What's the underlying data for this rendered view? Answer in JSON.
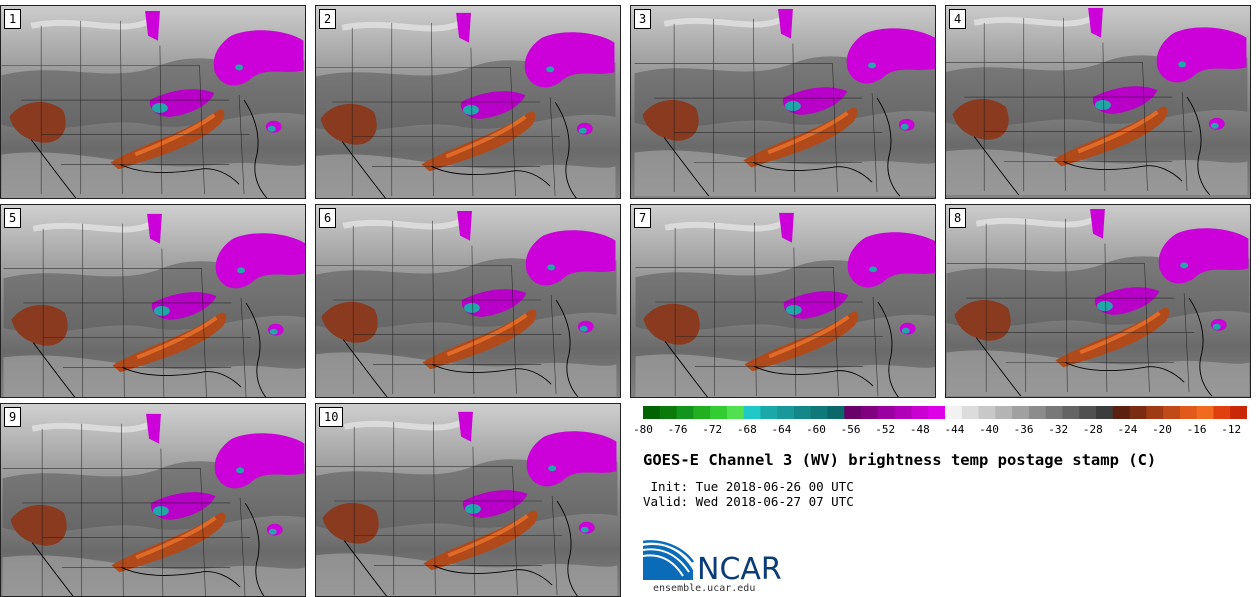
{
  "panels": [
    {
      "label": "1"
    },
    {
      "label": "2"
    },
    {
      "label": "3"
    },
    {
      "label": "4"
    },
    {
      "label": "5"
    },
    {
      "label": "6"
    },
    {
      "label": "7"
    },
    {
      "label": "8"
    },
    {
      "label": "9"
    },
    {
      "label": "10"
    }
  ],
  "colorbar": {
    "ticks": [
      "-80",
      "-76",
      "-72",
      "-68",
      "-64",
      "-60",
      "-56",
      "-52",
      "-48",
      "-44",
      "-40",
      "-36",
      "-32",
      "-28",
      "-24",
      "-20",
      "-16",
      "-12"
    ],
    "colors": [
      "#006400",
      "#0a7a0a",
      "#12951a",
      "#20b020",
      "#33cc33",
      "#50e050",
      "#20c8c8",
      "#1aa8a8",
      "#189898",
      "#148888",
      "#0f7878",
      "#0b6868",
      "#6a006a",
      "#800080",
      "#9a00a0",
      "#b000b8",
      "#c800d0",
      "#dd00e8",
      "#f2f2f2",
      "#dcdcdc",
      "#c8c8c8",
      "#b4b4b4",
      "#a0a0a0",
      "#8c8c8c",
      "#787878",
      "#646464",
      "#505050",
      "#3c3c3c",
      "#5c2010",
      "#7a2c12",
      "#a03a14",
      "#c04a18",
      "#e05a1c",
      "#f06a20",
      "#e04010",
      "#c82808"
    ]
  },
  "title": "GOES-E Channel 3 (WV) brightness temp postage stamp (C)",
  "init_line": " Init: Tue 2018-06-26 00 UTC",
  "valid_line": "Valid: Wed 2018-06-27 07 UTC",
  "logo": {
    "text": "NCAR",
    "url": "ensemble.ucar.edu",
    "color": "#0a5aa0"
  }
}
